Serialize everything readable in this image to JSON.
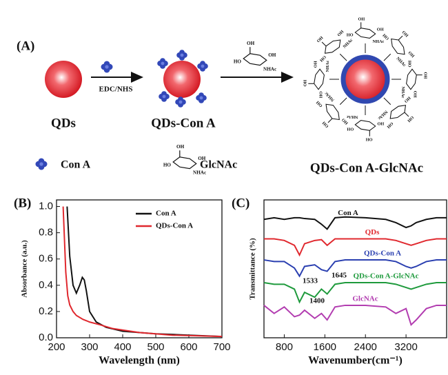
{
  "panel_a": {
    "label": "(A)",
    "reagent": "EDC/NHS",
    "qd_label": "QDs",
    "qd_cona_label": "QDs-Con A",
    "conjugate_label": "QDs-Con A-GlcNAc",
    "legend_cona": "Con A",
    "legend_glcnac": "GlcNAc",
    "sugar_labels": [
      "OH",
      "HO",
      "NHAc"
    ]
  },
  "chart_data": [
    {
      "type": "line",
      "panel": "(B)",
      "x_label": "Wavelength (nm)",
      "y_label": "Absorbance (a.u.)",
      "xlim": [
        200,
        700
      ],
      "xticks": [
        200,
        300,
        400,
        500,
        600,
        700
      ],
      "ylim": [
        0,
        1.05
      ],
      "yticks": [
        {
          "value": 0,
          "label": "0.0"
        },
        0.2,
        0.4,
        0.6,
        0.8,
        {
          "value": 1,
          "label": "1.0"
        }
      ],
      "legend": "upper right",
      "series": [
        {
          "name": "Con A",
          "color": "#111111",
          "x": [
            232,
            240,
            250,
            260,
            270,
            278,
            284,
            290,
            300,
            320,
            350,
            400,
            500,
            600,
            700
          ],
          "values": [
            1.0,
            0.62,
            0.4,
            0.34,
            0.4,
            0.46,
            0.44,
            0.36,
            0.2,
            0.12,
            0.08,
            0.05,
            0.03,
            0.02,
            0.01
          ]
        },
        {
          "name": "QDs-Con A",
          "color": "#e0282e",
          "x": [
            220,
            224,
            228,
            234,
            240,
            250,
            260,
            280,
            300,
            330,
            370,
            450,
            550,
            700
          ],
          "values": [
            1.0,
            0.75,
            0.5,
            0.32,
            0.25,
            0.2,
            0.17,
            0.14,
            0.12,
            0.1,
            0.07,
            0.04,
            0.02,
            0.01
          ]
        }
      ]
    },
    {
      "type": "line",
      "panel": "(C)",
      "x_label": "Wavenumber(cm⁻¹)",
      "y_label": "Transmittance (%)",
      "xlim": [
        400,
        4000
      ],
      "xticks": [
        800,
        1600,
        2400,
        3200
      ],
      "ylim": [
        1.5,
        10
      ],
      "x": [
        400,
        600,
        800,
        1000,
        1100,
        1200,
        1400,
        1533,
        1645,
        1800,
        2000,
        2400,
        2800,
        3000,
        3200,
        3300,
        3400,
        3600,
        3800,
        4000
      ],
      "annotations": [
        "1533",
        "1645",
        "1400"
      ],
      "series": [
        {
          "name": "Con A",
          "color": "#111111",
          "values": [
            8.8,
            8.9,
            8.8,
            8.9,
            8.9,
            8.85,
            8.8,
            8.5,
            8.2,
            8.9,
            8.95,
            8.9,
            8.8,
            8.6,
            8.3,
            8.4,
            8.6,
            8.8,
            8.9,
            8.9
          ]
        },
        {
          "name": "QDs",
          "color": "#e0282e",
          "values": [
            7.6,
            7.6,
            7.5,
            7.2,
            6.6,
            7.3,
            7.5,
            7.55,
            7.2,
            7.6,
            7.6,
            7.6,
            7.6,
            7.5,
            7.3,
            7.2,
            7.3,
            7.5,
            7.6,
            7.6
          ]
        },
        {
          "name": "QDs-Con A",
          "color": "#2a3fb0",
          "values": [
            6.3,
            6.2,
            6.2,
            5.8,
            5.3,
            5.9,
            6.0,
            5.7,
            5.6,
            6.2,
            6.3,
            6.3,
            6.3,
            6.2,
            5.9,
            5.8,
            5.9,
            6.2,
            6.3,
            6.3
          ]
        },
        {
          "name": "QDs-Con A-GlcNAc",
          "color": "#1e9a3c",
          "values": [
            4.9,
            4.8,
            4.8,
            4.5,
            3.7,
            4.3,
            4.0,
            4.5,
            4.2,
            4.8,
            4.9,
            4.9,
            4.9,
            4.8,
            4.6,
            4.5,
            4.6,
            4.8,
            4.9,
            4.9
          ]
        },
        {
          "name": "GlcNAc",
          "color": "#b23cb0",
          "values": [
            3.5,
            3.0,
            3.4,
            2.8,
            2.9,
            3.2,
            2.7,
            3.0,
            2.6,
            3.4,
            3.5,
            3.5,
            3.4,
            3.0,
            3.3,
            2.3,
            2.6,
            3.3,
            3.5,
            3.5
          ]
        }
      ]
    }
  ]
}
